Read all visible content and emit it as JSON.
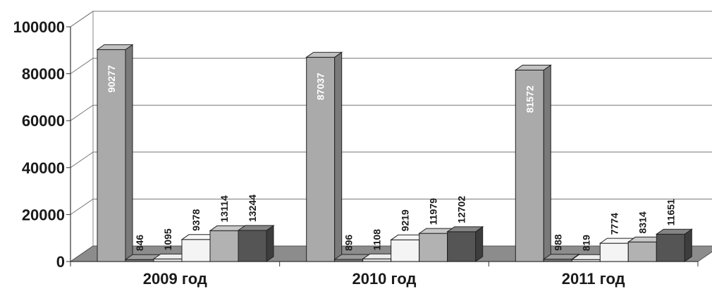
{
  "chart_data": {
    "type": "bar",
    "categories": [
      "2009 год",
      "2010 год",
      "2011 год"
    ],
    "series": [
      {
        "values": [
          90277,
          87037,
          81572
        ],
        "color": "#aaaaaa"
      },
      {
        "values": [
          846,
          896,
          988
        ],
        "color": "#777777"
      },
      {
        "values": [
          1095,
          1108,
          819
        ],
        "color": "#e6e6e6"
      },
      {
        "values": [
          9378,
          9219,
          7774
        ],
        "color": "#f4f4f4"
      },
      {
        "values": [
          13114,
          11979,
          8314
        ],
        "color": "#b2b2b2"
      },
      {
        "values": [
          13244,
          12702,
          11651
        ],
        "color": "#555555"
      }
    ],
    "yticks": [
      0,
      20000,
      40000,
      60000,
      80000,
      100000
    ],
    "ylim": [
      0,
      100000
    ],
    "grid": true,
    "legend": "none",
    "three_d": true
  }
}
